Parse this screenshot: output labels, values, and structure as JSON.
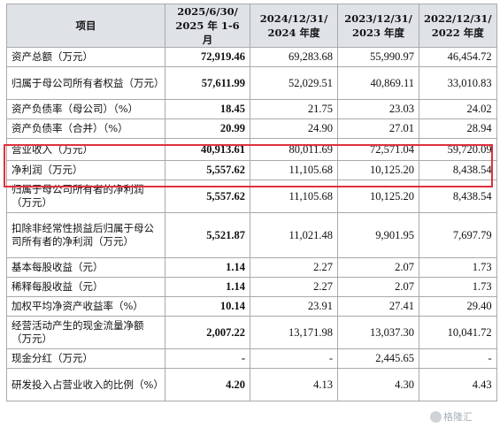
{
  "header": {
    "item": "项目",
    "periods": [
      [
        "2025/6/30/",
        "2025 年 1-6 月"
      ],
      [
        "2024/12/31/",
        "2024 年度"
      ],
      [
        "2023/12/31/",
        "2023 年度"
      ],
      [
        "2022/12/31/",
        "2022 年度"
      ]
    ]
  },
  "rows": [
    {
      "label": "资产总额（万元）",
      "values": [
        "72,919.46",
        "69,283.68",
        "55,990.97",
        "46,454.72"
      ]
    },
    {
      "label": "归属于母公司所有者权益（万元）",
      "values": [
        "57,611.99",
        "52,029.51",
        "40,869.11",
        "33,010.83"
      ]
    },
    {
      "label": "资产负债率（母公司）（%）",
      "values": [
        "18.45",
        "21.75",
        "23.03",
        "24.02"
      ]
    },
    {
      "label": "资产负债率（合并）（%）",
      "values": [
        "20.99",
        "24.90",
        "27.01",
        "28.94"
      ]
    },
    {
      "label": "营业收入（万元）",
      "values": [
        "40,913.61",
        "80,011.69",
        "72,571.04",
        "59,720.09"
      ]
    },
    {
      "label": "净利润（万元）",
      "values": [
        "5,557.62",
        "11,105.68",
        "10,125.20",
        "8,438.54"
      ]
    },
    {
      "label": "归属于母公司所有者的净利润（万元）",
      "values": [
        "5,557.62",
        "11,105.68",
        "10,125.20",
        "8,438.54"
      ]
    },
    {
      "label": "扣除非经常性损益后归属于母公司所有者的净利润（万元）",
      "values": [
        "5,521.87",
        "11,021.48",
        "9,901.95",
        "7,697.79"
      ]
    },
    {
      "label": "基本每股收益（元）",
      "values": [
        "1.14",
        "2.27",
        "2.07",
        "1.73"
      ]
    },
    {
      "label": "稀释每股收益（元）",
      "values": [
        "1.14",
        "2.27",
        "2.07",
        "1.73"
      ]
    },
    {
      "label": "加权平均净资产收益率（%）",
      "values": [
        "10.14",
        "23.91",
        "27.41",
        "29.40"
      ]
    },
    {
      "label": "经营活动产生的现金流量净额（万元）",
      "values": [
        "2,007.22",
        "13,171.98",
        "13,037.30",
        "10,041.72"
      ]
    },
    {
      "label": "现金分红（万元）",
      "values": [
        "-",
        "-",
        "2,445.65",
        "-"
      ]
    },
    {
      "label": "研发投入占营业收入的比例（%）",
      "values": [
        "4.20",
        "4.13",
        "4.30",
        "4.43"
      ]
    }
  ],
  "highlight": {
    "rows": [
      "营业收入（万元）",
      "净利润（万元）"
    ],
    "color": "#e0303e"
  },
  "watermark": {
    "text": "格隆汇",
    "icon": "watermark-logo-icon"
  }
}
